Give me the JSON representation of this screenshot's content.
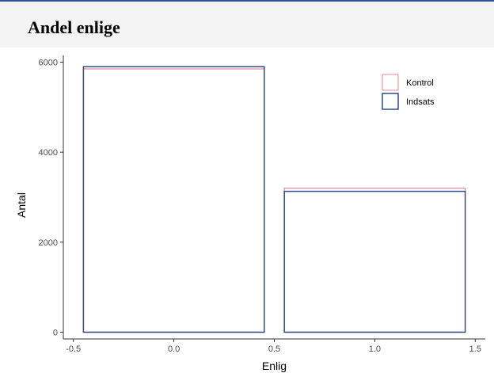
{
  "header": {
    "title": "Andel enlige"
  },
  "colors": {
    "kontrol": "#e08a9a",
    "indsats": "#2f4b8c",
    "axis": "#333333",
    "title_band": "#f3f3f3",
    "top_rule": "#2f5597"
  },
  "chart_data": {
    "type": "bar",
    "title": "Andel enlige",
    "xlabel": "Enlig",
    "ylabel": "Antal",
    "xlim": [
      -0.55,
      1.55
    ],
    "ylim": [
      -150,
      6150
    ],
    "x_ticks": [
      -0.5,
      0.0,
      0.5,
      1.0,
      1.5
    ],
    "x_tick_labels": [
      "-0.5",
      "0.0",
      "0.5",
      "1.0",
      "1.5"
    ],
    "y_ticks": [
      0,
      2000,
      4000,
      6000
    ],
    "y_tick_labels": [
      "0",
      "2000",
      "4000",
      "6000"
    ],
    "bar_width": 0.9,
    "x": [
      0,
      1
    ],
    "series": [
      {
        "name": "Kontrol",
        "color": "#e08a9a",
        "values": [
          5850,
          3200
        ]
      },
      {
        "name": "Indsats",
        "color": "#2f4b8c",
        "values": [
          5900,
          3130
        ]
      }
    ],
    "grid": false,
    "legend_position": "top-right",
    "fill": "none"
  }
}
